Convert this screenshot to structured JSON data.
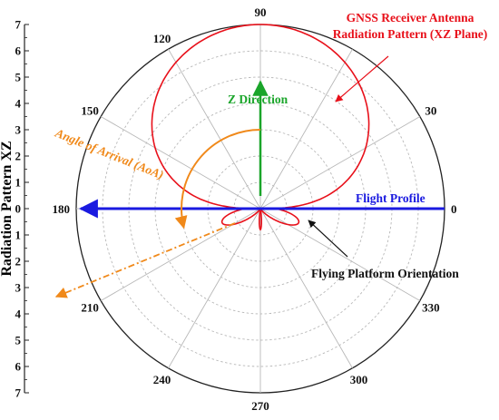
{
  "figure": {
    "y_axis_label": "Radiation Pattern XZ",
    "y_ticks_upper": [
      "7",
      "6",
      "5",
      "4",
      "3",
      "2",
      "1",
      "0"
    ],
    "y_ticks_lower": [
      "1",
      "2",
      "3",
      "4",
      "5",
      "6",
      "7"
    ],
    "angles": [
      {
        "deg": 0,
        "label": "0"
      },
      {
        "deg": 30,
        "label": "30"
      },
      {
        "deg": 90,
        "label": "90"
      },
      {
        "deg": 120,
        "label": "120"
      },
      {
        "deg": 150,
        "label": "150"
      },
      {
        "deg": 180,
        "label": "180"
      },
      {
        "deg": 210,
        "label": "210"
      },
      {
        "deg": 240,
        "label": "240"
      },
      {
        "deg": 270,
        "label": "270"
      },
      {
        "deg": 300,
        "label": "300"
      },
      {
        "deg": 330,
        "label": "330"
      }
    ],
    "grid_rings": 7,
    "radial_lines_every_deg": 30,
    "radiation_pattern": {
      "main_lobe_peak_deg": 90,
      "main_lobe_peak_value": 7,
      "back_lobes_deg": [
        200,
        270,
        340
      ]
    }
  },
  "annotations": {
    "pattern_title_line1": "GNSS Receiver Antenna",
    "pattern_title_line2": "Radiation Pattern (XZ Plane)",
    "z_direction": "Z Direction",
    "angle_of_arrival": "Angle of Arrival (AoA)",
    "flight_profile": "Flight Profile",
    "platform_orientation": "Flying Platform Orientation"
  },
  "colors": {
    "pattern": "#e8101a",
    "z_direction": "#1aa52a",
    "aoa": "#f0891a",
    "flight_profile": "#1a1ae0",
    "grid": "#b8b8b8",
    "axis": "#222222"
  }
}
